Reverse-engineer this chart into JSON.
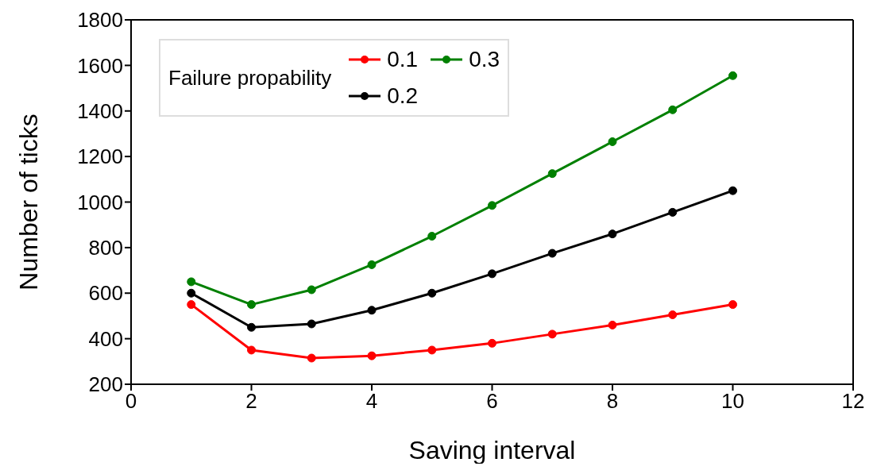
{
  "chart_data": {
    "type": "line",
    "xlabel": "Saving interval",
    "ylabel": "Number of ticks",
    "legend_title": "Failure propability",
    "x": [
      1,
      2,
      3,
      4,
      5,
      6,
      7,
      8,
      9,
      10
    ],
    "series": [
      {
        "name": "0.1",
        "color": "#ff0000",
        "values": [
          550,
          350,
          315,
          325,
          350,
          380,
          420,
          460,
          505,
          550
        ]
      },
      {
        "name": "0.3",
        "color": "#008000",
        "values": [
          650,
          550,
          615,
          725,
          850,
          985,
          1125,
          1265,
          1405,
          1555
        ]
      },
      {
        "name": "0.2",
        "color": "#000000",
        "values": [
          600,
          450,
          465,
          525,
          600,
          685,
          775,
          860,
          955,
          1050
        ]
      }
    ],
    "xlim": [
      0,
      12
    ],
    "xticks": [
      0,
      2,
      4,
      6,
      8,
      10,
      12
    ],
    "ylim": [
      200,
      1800
    ],
    "yticks": [
      200,
      400,
      600,
      800,
      1000,
      1200,
      1400,
      1600,
      1800
    ],
    "grid": false,
    "legend": "top left",
    "marker": "circle",
    "line_style": "solid"
  }
}
